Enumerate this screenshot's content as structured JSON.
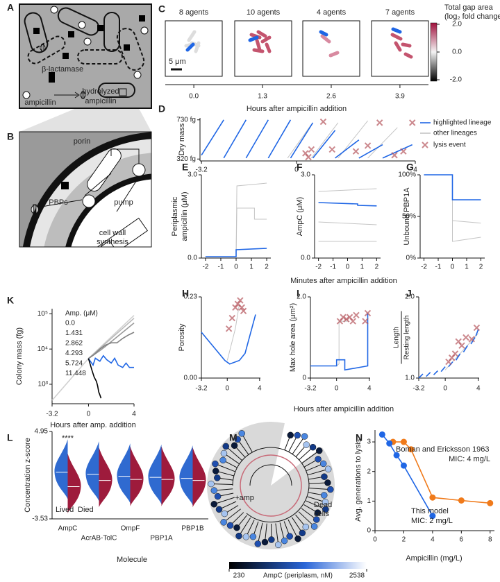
{
  "panel_a": {
    "panel": "A",
    "enzyme": "β-lactamase",
    "drug": "ampicillin",
    "product": [
      "hydrolyzed",
      "ampicillin"
    ]
  },
  "panel_b": {
    "panel": "B",
    "porin": "porin",
    "pbps": "PBPs",
    "pump": "pump",
    "synthesis": [
      "cell wall",
      "synthesis"
    ]
  },
  "panel_c": {
    "panel": "C",
    "titles": [
      "8 agents",
      "10 agents",
      "4 agents",
      "7 agents"
    ],
    "scale_bar": "5 μm",
    "xlabel": "Hours after ampicillin addition",
    "xlim": [
      -0.54,
      4.44
    ],
    "xticks": [
      {
        "value": 0,
        "label": "0.0"
      },
      1.3,
      2.6,
      3.9
    ],
    "colorbar": {
      "title": [
        "Total gap area",
        "(log₂ fold change)"
      ],
      "clim": [
        -2.1,
        2.1
      ],
      "ticks": [
        {
          "value": 2,
          "label": "2.0"
        },
        {
          "value": 0,
          "label": "0.0"
        },
        {
          "value": -2,
          "label": "-2.0"
        }
      ]
    }
  },
  "panel_m": {
    "panel": "M",
    "amp": "+amp",
    "dead": [
      "Dead",
      "cells"
    ],
    "colorbar": {
      "title": "AmpC (periplasm, nM)",
      "clim": [
        230,
        2538
      ],
      "ticks": [
        230,
        2538
      ]
    }
  },
  "chart_data": [
    {
      "panel": "D",
      "type": "line",
      "ylabel": "Dry mass",
      "xlim": [
        -3.25,
        4.0
      ],
      "ylim": [
        300,
        750
      ],
      "xticks": [
        -3.2,
        0,
        4
      ],
      "yticks": [
        {
          "value": 320,
          "label": "320 fg"
        },
        {
          "value": 730,
          "label": "730 fg"
        }
      ],
      "series": [
        {
          "name": "other lineages",
          "color": "#c4c4c4",
          "x": [
            -0.3,
            0.5,
            0.5,
            0.5,
            1.4,
            1.4,
            1.4,
            2.4,
            2.4,
            2.4,
            3.4
          ],
          "values": [
            330,
            680,
            null,
            330,
            700,
            null,
            330,
            720,
            null,
            330,
            650
          ]
        },
        {
          "name": "highlighted lineage",
          "color": "#1f66e5",
          "x": [
            -3.2,
            -2.45,
            -2.45,
            -2.45,
            -1.7,
            -1.7,
            -1.7,
            -0.95,
            -0.95,
            -0.95,
            -0.2,
            -0.2,
            -0.2,
            0.55,
            0.55,
            0.55,
            1.3,
            1.3,
            1.3,
            2.1,
            2.1,
            2.1,
            2.9,
            2.9,
            2.9,
            3.9
          ],
          "values": [
            360,
            730,
            null,
            330,
            730,
            null,
            330,
            730,
            null,
            330,
            730,
            null,
            330,
            700,
            null,
            330,
            620,
            null,
            330,
            520,
            null,
            330,
            470,
            null,
            330,
            470
          ]
        },
        {
          "name": "lysis event",
          "color": "#b5565c",
          "marker": "x",
          "x": [
            0.3,
            0.4,
            0.5,
            0.9,
            1.2,
            2.0,
            2.4,
            2.8,
            3.3,
            3.6,
            3.9
          ],
          "values": [
            380,
            340,
            420,
            710,
            420,
            400,
            460,
            700,
            360,
            400,
            700
          ]
        }
      ]
    },
    {
      "panel": "E",
      "type": "line",
      "ylabel": [
        "Periplasmic",
        "ampicillin (μM)"
      ],
      "xlim": [
        -2.27,
        2.27
      ],
      "ylim": [
        0,
        3
      ],
      "xticks": [
        -2,
        -1,
        0,
        1,
        2
      ],
      "yticks": [
        {
          "value": 0,
          "label": "0.0"
        },
        {
          "value": 3,
          "label": "3.0"
        }
      ],
      "series": [
        {
          "color": "#c4c4c4",
          "x": [
            -2,
            0,
            0.05,
            2
          ],
          "values": [
            0.05,
            0.05,
            2.6,
            2.7
          ]
        },
        {
          "color": "#c4c4c4",
          "x": [
            -2,
            0,
            0.05,
            1.2,
            1.2,
            2
          ],
          "values": [
            0.05,
            0.05,
            1.8,
            1.8,
            1.4,
            1.4
          ]
        },
        {
          "color": "#1f66e5",
          "x": [
            -2,
            0,
            0,
            2
          ],
          "values": [
            0.05,
            0.05,
            0.3,
            0.35
          ]
        }
      ]
    },
    {
      "panel": "F",
      "type": "line",
      "ylabel": "AmpC (μM)",
      "xlabel": "Minutes after ampicillin addition",
      "xlim": [
        -2.27,
        2.27
      ],
      "ylim": [
        0,
        3
      ],
      "xticks": [
        -2,
        -1,
        0,
        1,
        2
      ],
      "yticks": [
        {
          "value": 0,
          "label": "0.0"
        },
        {
          "value": 3,
          "label": "3.0"
        }
      ],
      "series": [
        {
          "color": "#c4c4c4",
          "x": [
            -2,
            2
          ],
          "values": [
            2.4,
            2.5
          ]
        },
        {
          "color": "#c4c4c4",
          "x": [
            -2,
            2
          ],
          "values": [
            1.3,
            1.2
          ]
        },
        {
          "color": "#c4c4c4",
          "x": [
            -2,
            2
          ],
          "values": [
            0.6,
            0.6
          ]
        },
        {
          "color": "#1f66e5",
          "x": [
            -2,
            0.7,
            0.7,
            2
          ],
          "values": [
            2.0,
            1.95,
            1.9,
            1.88
          ]
        }
      ]
    },
    {
      "panel": "G",
      "type": "line",
      "ylabel": "Unbound PBP1A",
      "xlim": [
        -2.27,
        2.27
      ],
      "ylim": [
        0,
        100
      ],
      "xticks": [
        -2,
        -1,
        0,
        1,
        2
      ],
      "yticks": [
        {
          "value": 0,
          "label": "0%"
        },
        {
          "value": 50,
          "label": "50%"
        },
        {
          "value": 100,
          "label": "100%"
        }
      ],
      "series": [
        {
          "color": "#c4c4c4",
          "x": [
            -2,
            0,
            0,
            2
          ],
          "values": [
            100,
            100,
            45,
            42
          ]
        },
        {
          "color": "#c4c4c4",
          "x": [
            -2,
            0,
            0,
            2
          ],
          "values": [
            100,
            100,
            20,
            25
          ]
        },
        {
          "color": "#1f66e5",
          "x": [
            -2,
            0,
            0,
            2
          ],
          "values": [
            100,
            100,
            70,
            70
          ]
        }
      ]
    },
    {
      "panel": "K",
      "type": "line",
      "log_y": true,
      "ylabel": "Colony mass (fg)",
      "xlabel": "Hours after amp. addition",
      "legend_title": "Amp. (μM)",
      "xlim": [
        -3.2,
        4
      ],
      "ylim": [
        280,
        140000
      ],
      "xticks": [
        -3.2,
        0,
        4
      ],
      "yticks": [
        {
          "value": 1000,
          "label": "10³"
        },
        {
          "value": 10000,
          "label": "10⁴"
        },
        {
          "value": 100000,
          "label": "10⁵"
        }
      ],
      "series": [
        {
          "name": "0.0",
          "color": "#d0d0d0",
          "x": [
            -3.2,
            0,
            4
          ],
          "values": [
            350,
            5400,
            90000
          ]
        },
        {
          "name": "1.431",
          "color": "#b8b8b8",
          "x": [
            0,
            4
          ],
          "values": [
            5400,
            75000
          ]
        },
        {
          "name": "2.862",
          "color": "#999999",
          "x": [
            0,
            1,
            1.5,
            4
          ],
          "values": [
            5400,
            9000,
            12000,
            55000
          ]
        },
        {
          "name": "4.293",
          "color": "#808080",
          "x": [
            0,
            0.5,
            1,
            1.5,
            2,
            2.5,
            3,
            3.5,
            4
          ],
          "values": [
            5400,
            7000,
            10000,
            13000,
            15000,
            15000,
            20000,
            25000,
            30000
          ]
        },
        {
          "name": "5.724",
          "color": "#1f66e5",
          "x": [
            0,
            0.4,
            0.6,
            1,
            1.3,
            1.6,
            2,
            2.3,
            2.6,
            3,
            3.3,
            3.6,
            4
          ],
          "values": [
            5400,
            3500,
            5500,
            4500,
            6500,
            5000,
            4000,
            5500,
            3500,
            3000,
            4000,
            3000,
            3000
          ]
        },
        {
          "name": "11.448",
          "color": "#000000",
          "x": [
            0,
            0.3,
            0.5,
            0.7,
            0.8,
            0.9,
            1,
            1.1
          ],
          "values": [
            5400,
            2500,
            1600,
            1200,
            900,
            600,
            500,
            400
          ]
        }
      ]
    },
    {
      "panel": "H",
      "type": "line",
      "ylabel": "Porosity",
      "xlim": [
        -3.2,
        4.1
      ],
      "ylim": [
        0,
        0.23
      ],
      "xticks": [
        -3.2,
        0,
        4
      ],
      "yticks": [
        {
          "value": 0,
          "label": "0.00"
        },
        0.23
      ],
      "series": [
        {
          "color": "#c4c4c4",
          "x": [
            0,
            1,
            1.5
          ],
          "values": [
            0.05,
            0.14,
            0.21
          ]
        },
        {
          "color": "#1f66e5",
          "x": [
            -3.2,
            -0.3,
            0.3,
            1.5,
            2.2,
            3.5
          ],
          "values": [
            0.13,
            0.05,
            0.04,
            0.05,
            0.07,
            0.18
          ]
        },
        {
          "color": "#b5565c",
          "marker": "x",
          "x": [
            0.2,
            0.6,
            1.0,
            1.3,
            1.6,
            1.8,
            2.0
          ],
          "values": [
            0.14,
            0.17,
            0.2,
            0.21,
            0.22,
            0.2,
            0.19
          ]
        }
      ]
    },
    {
      "panel": "I",
      "type": "line",
      "ylabel": "Max hole area (μm²)",
      "xlabel": "Hours after ampicillin addition",
      "xlim": [
        -3.2,
        4.1
      ],
      "ylim": [
        0,
        2
      ],
      "xticks": [
        -3.2,
        0,
        4
      ],
      "yticks": [
        0,
        {
          "value": 2,
          "label": "2.0"
        }
      ],
      "series": [
        {
          "color": "#c4c4c4",
          "x": [
            0,
            0.3,
            0.3,
            1.5
          ],
          "values": [
            0.3,
            0.35,
            1.4,
            1.4
          ]
        },
        {
          "color": "#1f66e5",
          "x": [
            -3.2,
            0,
            0,
            1,
            1,
            3.8,
            3.8
          ],
          "values": [
            0.3,
            0.3,
            0.45,
            0.45,
            0.2,
            0.3,
            1.6
          ]
        },
        {
          "color": "#b5565c",
          "marker": "x",
          "x": [
            0.4,
            0.8,
            1.2,
            1.6,
            2.0,
            2.4,
            3.5,
            3.8
          ],
          "values": [
            1.4,
            1.5,
            1.45,
            1.5,
            1.4,
            1.55,
            1.4,
            1.6
          ]
        }
      ]
    },
    {
      "panel": "J",
      "type": "line",
      "ylabel_numerator": "Length",
      "ylabel_denominator": "Resting length",
      "xlim": [
        -3.2,
        4.1
      ],
      "ylim": [
        1,
        2
      ],
      "xticks": [
        -3.2,
        0,
        4
      ],
      "yticks": [
        {
          "value": 1,
          "label": "1.0"
        },
        {
          "value": 2,
          "label": "2.0"
        }
      ],
      "series": [
        {
          "color": "#c4c4c4",
          "x": [
            0,
            4
          ],
          "values": [
            1.1,
            1.55
          ]
        },
        {
          "color": "#1f66e5",
          "x": [
            -3.2,
            -2.7,
            -2.7,
            -2.3,
            -1.8,
            -1.8,
            -1.4,
            -0.9,
            -0.9,
            -0.5,
            0.0,
            0.0,
            0.4,
            0.9,
            0.9,
            1.3,
            1.8,
            1.8,
            2.2,
            2.7,
            2.7,
            3.1,
            3.6,
            3.6,
            3.7,
            4.0
          ],
          "values": [
            1.0,
            1.05,
            null,
            1.02,
            1.07,
            null,
            1.04,
            1.09,
            null,
            1.08,
            1.14,
            null,
            1.14,
            1.2,
            null,
            1.22,
            1.3,
            null,
            1.32,
            1.4,
            null,
            1.42,
            1.5,
            null,
            1.52,
            1.6
          ]
        },
        {
          "color": "#b5565c",
          "marker": "x",
          "x": [
            0.4,
            0.8,
            1.2,
            1.6,
            2.0,
            2.5,
            3.2,
            3.8
          ],
          "values": [
            1.2,
            1.25,
            1.3,
            1.45,
            1.4,
            1.5,
            1.48,
            1.62
          ]
        }
      ]
    },
    {
      "panel": "L",
      "type": "violin",
      "ylabel": "Concentration z-score",
      "xlabel": "Molecule",
      "annotation": "****",
      "categories": [
        "AmpC",
        "AcrAB-TolC",
        "OmpF",
        "PBP1A",
        "PBP1B"
      ],
      "ylim": [
        -3.53,
        4.95
      ],
      "yticks": [
        4.95,
        -3.53
      ],
      "series": [
        {
          "name": "Lived",
          "color": "#2f6ad0",
          "values": [
            1.0,
            0.8,
            0.6,
            0.5,
            0.4
          ]
        },
        {
          "name": "Died",
          "color": "#9e1b3c",
          "values": [
            -0.4,
            0.2,
            0.3,
            0.3,
            0.2
          ]
        }
      ]
    },
    {
      "panel": "N",
      "type": "line",
      "ylabel": "Avg. generations to lysis",
      "xlabel": "Ampicillin (mg/L)",
      "xlim": [
        0,
        8.3
      ],
      "ylim": [
        0,
        3.4
      ],
      "xticks": [
        0,
        2,
        4,
        6,
        8
      ],
      "yticks": [
        0,
        1,
        2,
        3
      ],
      "annotations": [
        "MIC: 4 mg/L",
        "MIC: 2 mg/L"
      ],
      "series": [
        {
          "name": "Boman and Ericksson 1963",
          "color": "#f07a1a",
          "marker": "o",
          "x": [
            1.25,
            2,
            2.5,
            4,
            6,
            8
          ],
          "values": [
            3.0,
            3.0,
            2.75,
            1.12,
            1.02,
            0.93
          ]
        },
        {
          "name": "This model",
          "color": "#1f66e5",
          "marker": "o",
          "x": [
            0.5,
            1,
            1.5,
            2,
            4
          ],
          "values": [
            3.25,
            2.95,
            2.55,
            2.2,
            0.5
          ]
        }
      ]
    }
  ]
}
